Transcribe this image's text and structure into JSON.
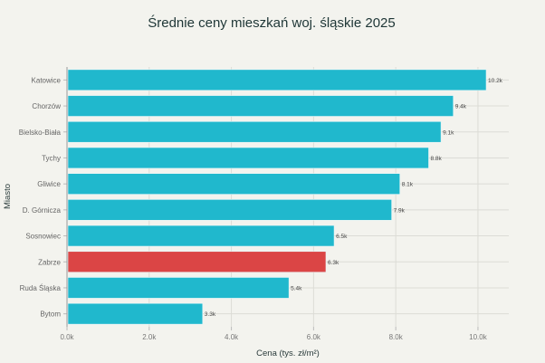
{
  "chart_data": {
    "type": "bar",
    "orientation": "horizontal",
    "title": "Średnie ceny mieszkań woj. śląskie 2025",
    "xlabel": "Cena (tys. zł/m²)",
    "ylabel": "Miasto",
    "categories": [
      "Katowice",
      "Chorzów",
      "Bielsko-Biała",
      "Tychy",
      "Gliwice",
      "D. Górnicza",
      "Sosnowiec",
      "Zabrze",
      "Ruda Śląska",
      "Bytom"
    ],
    "values": [
      10.2,
      9.4,
      9.1,
      8.8,
      8.1,
      7.9,
      6.5,
      6.3,
      5.4,
      3.3
    ],
    "value_labels": [
      "10.2k",
      "9.4k",
      "9.1k",
      "8.8k",
      "8.1k",
      "7.9k",
      "6.5k",
      "6.3k",
      "5.4k",
      "3.3k"
    ],
    "highlight": "Zabrze",
    "xticks": [
      0,
      2,
      4,
      6,
      8,
      10
    ],
    "xtick_labels": [
      "0.0k",
      "2.0k",
      "4.0k",
      "6.0k",
      "8.0k",
      "10.0k"
    ],
    "xlim": [
      0,
      10.75
    ],
    "grid": true,
    "colors": {
      "bar": "#20b8cd",
      "highlight": "#db4545",
      "background": "#f3f3ee",
      "grid": "#dcdcd6"
    }
  }
}
